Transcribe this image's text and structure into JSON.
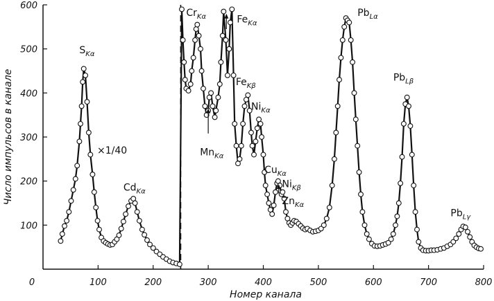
{
  "chart_data": {
    "type": "scatter",
    "xlabel": "Номер канала",
    "ylabel": "Число импульсов в канале",
    "xlim": [
      0,
      800
    ],
    "ylim": [
      0,
      600
    ],
    "x_ticks": [
      0,
      100,
      200,
      300,
      400,
      500,
      600,
      700,
      800
    ],
    "y_ticks": [
      100,
      200,
      300,
      400,
      500,
      600
    ],
    "scale_note": "×1/40",
    "scale_break_x": 250,
    "series": [
      {
        "values_xy": [
          [
            32,
            64
          ],
          [
            35,
            80
          ],
          [
            39,
            98
          ],
          [
            43,
            110
          ],
          [
            47,
            130
          ],
          [
            51,
            155
          ],
          [
            55,
            180
          ],
          [
            59,
            205
          ],
          [
            62,
            235
          ],
          [
            66,
            290
          ],
          [
            68,
            330
          ],
          [
            70,
            370
          ],
          [
            72,
            425
          ],
          [
            74,
            455
          ],
          [
            77,
            440
          ],
          [
            80,
            380
          ],
          [
            83,
            310
          ],
          [
            86,
            260
          ],
          [
            90,
            215
          ],
          [
            93,
            175
          ],
          [
            96,
            140
          ],
          [
            99,
            110
          ],
          [
            102,
            90
          ],
          [
            106,
            72
          ],
          [
            110,
            64
          ],
          [
            114,
            60
          ],
          [
            118,
            57
          ],
          [
            122,
            55
          ],
          [
            126,
            56
          ],
          [
            130,
            62
          ],
          [
            134,
            68
          ],
          [
            138,
            77
          ],
          [
            142,
            92
          ],
          [
            146,
            108
          ],
          [
            150,
            125
          ],
          [
            155,
            143
          ],
          [
            160,
            155
          ],
          [
            164,
            160
          ],
          [
            167,
            150
          ],
          [
            171,
            130
          ],
          [
            175,
            110
          ],
          [
            180,
            90
          ],
          [
            184,
            78
          ],
          [
            189,
            66
          ],
          [
            194,
            56
          ],
          [
            200,
            48
          ],
          [
            206,
            40
          ],
          [
            212,
            34
          ],
          [
            218,
            28
          ],
          [
            224,
            23
          ],
          [
            230,
            18
          ],
          [
            236,
            15
          ],
          [
            242,
            13
          ],
          [
            248,
            11
          ],
          [
            252,
            590
          ],
          [
            254,
            520
          ],
          [
            256,
            470
          ],
          [
            258,
            430
          ],
          [
            260,
            410
          ],
          [
            264,
            405
          ],
          [
            268,
            420
          ],
          [
            270,
            450
          ],
          [
            273,
            480
          ],
          [
            276,
            520
          ],
          [
            278,
            545
          ],
          [
            280,
            555
          ],
          [
            283,
            530
          ],
          [
            286,
            500
          ],
          [
            288,
            450
          ],
          [
            291,
            410
          ],
          [
            294,
            370
          ],
          [
            297,
            350
          ],
          [
            300,
            360
          ],
          [
            302,
            390
          ],
          [
            305,
            400
          ],
          [
            308,
            370
          ],
          [
            312,
            345
          ],
          [
            314,
            360
          ],
          [
            318,
            390
          ],
          [
            321,
            420
          ],
          [
            323,
            470
          ],
          [
            326,
            530
          ],
          [
            328,
            585
          ],
          [
            332,
            520
          ],
          [
            335,
            440
          ],
          [
            338,
            500
          ],
          [
            340,
            560
          ],
          [
            343,
            590
          ],
          [
            346,
            440
          ],
          [
            348,
            330
          ],
          [
            351,
            280
          ],
          [
            354,
            240
          ],
          [
            357,
            250
          ],
          [
            360,
            280
          ],
          [
            363,
            330
          ],
          [
            366,
            370
          ],
          [
            369,
            385
          ],
          [
            372,
            395
          ],
          [
            375,
            360
          ],
          [
            378,
            310
          ],
          [
            380,
            280
          ],
          [
            383,
            260
          ],
          [
            386,
            290
          ],
          [
            389,
            320
          ],
          [
            392,
            340
          ],
          [
            395,
            330
          ],
          [
            397,
            300
          ],
          [
            400,
            260
          ],
          [
            402,
            220
          ],
          [
            404,
            190
          ],
          [
            407,
            170
          ],
          [
            410,
            150
          ],
          [
            413,
            135
          ],
          [
            416,
            125
          ],
          [
            419,
            145
          ],
          [
            422,
            175
          ],
          [
            425,
            195
          ],
          [
            427,
            200
          ],
          [
            430,
            190
          ],
          [
            433,
            170
          ],
          [
            435,
            175
          ],
          [
            438,
            160
          ],
          [
            441,
            130
          ],
          [
            444,
            115
          ],
          [
            447,
            105
          ],
          [
            450,
            100
          ],
          [
            453,
            105
          ],
          [
            456,
            110
          ],
          [
            460,
            108
          ],
          [
            464,
            103
          ],
          [
            468,
            98
          ],
          [
            472,
            93
          ],
          [
            476,
            90
          ],
          [
            480,
            92
          ],
          [
            485,
            88
          ],
          [
            490,
            85
          ],
          [
            495,
            86
          ],
          [
            500,
            88
          ],
          [
            505,
            92
          ],
          [
            510,
            100
          ],
          [
            515,
            115
          ],
          [
            520,
            140
          ],
          [
            525,
            190
          ],
          [
            529,
            250
          ],
          [
            532,
            310
          ],
          [
            535,
            370
          ],
          [
            538,
            430
          ],
          [
            541,
            480
          ],
          [
            544,
            520
          ],
          [
            547,
            550
          ],
          [
            550,
            570
          ],
          [
            553,
            565
          ],
          [
            556,
            560
          ],
          [
            559,
            520
          ],
          [
            562,
            470
          ],
          [
            565,
            400
          ],
          [
            568,
            340
          ],
          [
            571,
            280
          ],
          [
            574,
            220
          ],
          [
            577,
            170
          ],
          [
            580,
            130
          ],
          [
            584,
            100
          ],
          [
            588,
            80
          ],
          [
            592,
            68
          ],
          [
            597,
            58
          ],
          [
            602,
            53
          ],
          [
            607,
            52
          ],
          [
            612,
            53
          ],
          [
            617,
            55
          ],
          [
            622,
            57
          ],
          [
            627,
            60
          ],
          [
            632,
            68
          ],
          [
            636,
            80
          ],
          [
            640,
            100
          ],
          [
            643,
            120
          ],
          [
            646,
            150
          ],
          [
            649,
            195
          ],
          [
            652,
            255
          ],
          [
            655,
            330
          ],
          [
            658,
            375
          ],
          [
            661,
            390
          ],
          [
            664,
            370
          ],
          [
            667,
            325
          ],
          [
            670,
            260
          ],
          [
            673,
            190
          ],
          [
            676,
            130
          ],
          [
            679,
            90
          ],
          [
            682,
            62
          ],
          [
            686,
            48
          ],
          [
            690,
            43
          ],
          [
            695,
            42
          ],
          [
            700,
            42
          ],
          [
            705,
            43
          ],
          [
            710,
            43
          ],
          [
            716,
            44
          ],
          [
            722,
            46
          ],
          [
            728,
            48
          ],
          [
            734,
            52
          ],
          [
            740,
            56
          ],
          [
            745,
            62
          ],
          [
            750,
            70
          ],
          [
            755,
            80
          ],
          [
            759,
            90
          ],
          [
            763,
            97
          ],
          [
            767,
            95
          ],
          [
            771,
            85
          ],
          [
            775,
            73
          ],
          [
            779,
            62
          ],
          [
            783,
            54
          ],
          [
            787,
            50
          ],
          [
            791,
            47
          ],
          [
            795,
            46
          ]
        ]
      }
    ],
    "annotations": [
      {
        "id": "s",
        "text": "S",
        "sub": "Kα",
        "x": 66,
        "y": 490
      },
      {
        "id": "cd",
        "text": "Cd",
        "sub": "Kα",
        "x": 146,
        "y": 178
      },
      {
        "id": "cr",
        "text": "Cr",
        "sub": "Kα",
        "x": 260,
        "y": 575
      },
      {
        "id": "fe-ka",
        "text": "Fe",
        "sub": "Kα",
        "x": 352,
        "y": 560
      },
      {
        "id": "fe-kb",
        "text": "Fe",
        "sub": "Kβ",
        "x": 350,
        "y": 418
      },
      {
        "id": "ni-ka",
        "text": "Ni",
        "sub": "Kα",
        "x": 378,
        "y": 362
      },
      {
        "id": "mn",
        "text": "Mn",
        "sub": "Kα",
        "x": 285,
        "y": 258
      },
      {
        "id": "cu",
        "text": "Cu",
        "sub": "Kα",
        "x": 402,
        "y": 218
      },
      {
        "id": "ni-kb",
        "text": "Ni",
        "sub": "Kβ",
        "x": 434,
        "y": 186
      },
      {
        "id": "zn",
        "text": "Zn",
        "sub": "Kα",
        "x": 434,
        "y": 148
      },
      {
        "id": "pb-la",
        "text": "Pb",
        "sub": "Lα",
        "x": 571,
        "y": 575
      },
      {
        "id": "pb-lb",
        "text": "Pb",
        "sub": "Lβ",
        "x": 636,
        "y": 428
      },
      {
        "id": "pb-lg",
        "text": "Pb",
        "sub": "Lγ",
        "x": 740,
        "y": 120
      }
    ],
    "arrows": [
      {
        "id": "mn-arrow",
        "x": 300,
        "y_from": 308,
        "y_to": 365
      },
      {
        "id": "fe-arrow",
        "x": 333,
        "y_from": 545,
        "y_to": 580
      },
      {
        "id": "ni-kb-arrow",
        "x": 428,
        "y_from": 172,
        "y_to": 193
      }
    ]
  }
}
